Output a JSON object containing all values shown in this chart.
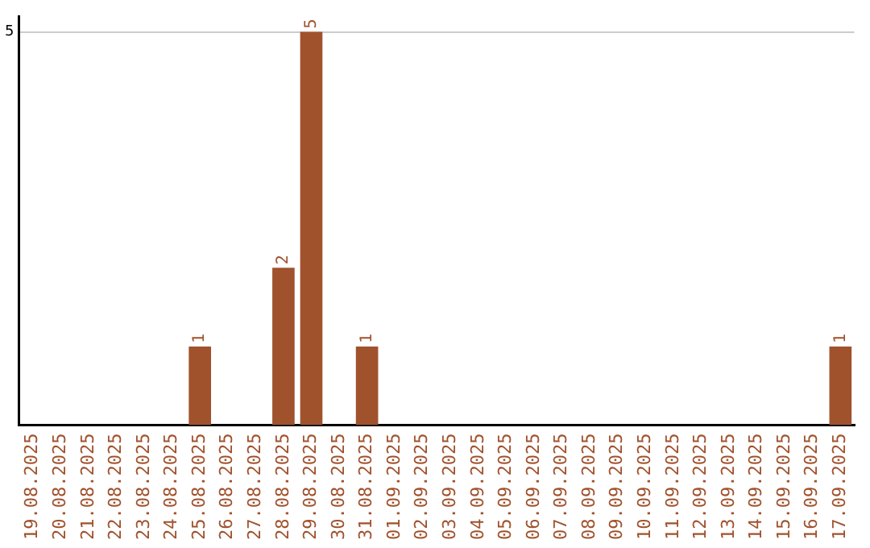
{
  "chart_data": {
    "type": "bar",
    "categories": [
      "19.08.2025",
      "20.08.2025",
      "21.08.2025",
      "22.08.2025",
      "23.08.2025",
      "24.08.2025",
      "25.08.2025",
      "26.08.2025",
      "27.08.2025",
      "28.08.2025",
      "29.08.2025",
      "30.08.2025",
      "31.08.2025",
      "01.09.2025",
      "02.09.2025",
      "03.09.2025",
      "04.09.2025",
      "05.09.2025",
      "06.09.2025",
      "07.09.2025",
      "08.09.2025",
      "09.09.2025",
      "10.09.2025",
      "11.09.2025",
      "12.09.2025",
      "13.09.2025",
      "14.09.2025",
      "15.09.2025",
      "16.09.2025",
      "17.09.2025"
    ],
    "values": [
      0,
      0,
      0,
      0,
      0,
      0,
      1,
      0,
      0,
      2,
      5,
      0,
      1,
      0,
      0,
      0,
      0,
      0,
      0,
      0,
      0,
      0,
      0,
      0,
      0,
      0,
      0,
      0,
      0,
      1
    ],
    "value_labels": [
      null,
      null,
      null,
      null,
      null,
      null,
      "1",
      null,
      null,
      "2",
      "5",
      null,
      "1",
      null,
      null,
      null,
      null,
      null,
      null,
      null,
      null,
      null,
      null,
      null,
      null,
      null,
      null,
      null,
      null,
      "1"
    ],
    "color": "#a0522d",
    "ylim": [
      0,
      5.2
    ],
    "yticks": [
      5
    ],
    "grid": "y"
  }
}
